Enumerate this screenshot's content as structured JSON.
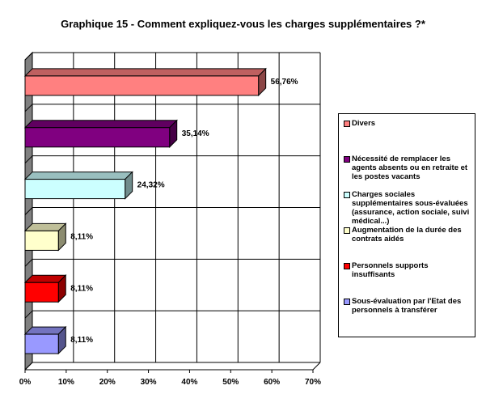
{
  "chart_data": {
    "type": "bar",
    "orientation": "horizontal",
    "title": "Graphique 15 - Comment expliquez-vous les charges supplémentaires ?*",
    "xlim": [
      0,
      70
    ],
    "x_ticks": [
      "0%",
      "10%",
      "20%",
      "30%",
      "40%",
      "50%",
      "60%",
      "70%"
    ],
    "grid": true,
    "legend_position": "right",
    "series": [
      {
        "name": "Divers",
        "value": 56.76,
        "label": "56,76%",
        "color": "#ff8080"
      },
      {
        "name": "Nécessité de remplacer les agents absents ou en retraite et les postes vacants",
        "value": 35.14,
        "label": "35,14%",
        "color": "#800080"
      },
      {
        "name": "Charges sociales supplémentaires sous-évaluées (assurance, action sociale, suivi médical...)",
        "value": 24.32,
        "label": "24,32%",
        "color": "#ccffff"
      },
      {
        "name": "Augmentation de la durée des contrats aidés",
        "value": 8.11,
        "label": "8,11%",
        "color": "#ffffcc"
      },
      {
        "name": "Personnels supports insuffisants",
        "value": 8.11,
        "label": "8,11%",
        "color": "#ff0000"
      },
      {
        "name": "Sous-évaluation par l'Etat des personnels à transférer",
        "value": 8.11,
        "label": "8,11%",
        "color": "#9999ff"
      }
    ]
  }
}
